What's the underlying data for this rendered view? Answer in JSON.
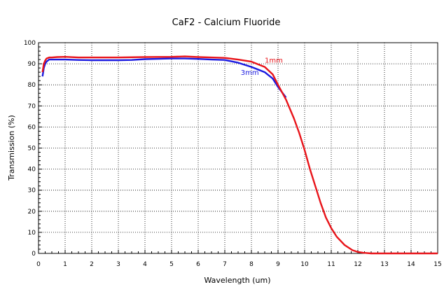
{
  "chart_data": {
    "type": "line",
    "title": "CaF2 - Calcium Fluoride",
    "xlabel": "Wavelength (um)",
    "ylabel": "Transmission (%)",
    "xlim": [
      0,
      15
    ],
    "ylim": [
      0,
      100
    ],
    "xticks": [
      0,
      1,
      2,
      3,
      4,
      5,
      6,
      7,
      8,
      9,
      10,
      11,
      12,
      13,
      14,
      15
    ],
    "yticks": [
      0,
      10,
      20,
      30,
      40,
      50,
      60,
      70,
      80,
      90,
      100
    ],
    "grid": true,
    "series": [
      {
        "name": "1mm",
        "color": "#e8141a",
        "x": [
          0.15,
          0.2,
          0.25,
          0.3,
          0.4,
          0.5,
          0.7,
          1.0,
          1.5,
          2.0,
          3.0,
          4.0,
          5.0,
          5.5,
          6.0,
          6.5,
          7.0,
          7.5,
          8.0,
          8.5,
          8.8,
          9.0,
          9.3,
          9.6,
          9.8,
          10.0,
          10.2,
          10.4,
          10.6,
          10.8,
          11.0,
          11.2,
          11.5,
          11.8,
          12.0,
          12.2,
          12.5,
          13.0,
          14.0,
          15.0
        ],
        "y": [
          86,
          90,
          91.5,
          92.5,
          93,
          93,
          93.2,
          93.3,
          93,
          93,
          93,
          93.2,
          93.3,
          93.5,
          93.2,
          93,
          92.8,
          92,
          91,
          88.5,
          85,
          80,
          73,
          64,
          57,
          49,
          40,
          32,
          24,
          17,
          12,
          8,
          4,
          1.5,
          0.7,
          0.3,
          0,
          0,
          0,
          0
        ]
      },
      {
        "name": "3mm",
        "color": "#1a1ae0",
        "x": [
          0.15,
          0.2,
          0.25,
          0.3,
          0.4,
          0.5,
          0.7,
          1.0,
          1.5,
          2.0,
          3.0,
          3.5,
          4.0,
          5.0,
          5.5,
          6.0,
          6.5,
          7.0,
          7.5,
          8.0,
          8.5,
          8.8,
          9.0,
          9.3
        ],
        "y": [
          84,
          88,
          90,
          91,
          92,
          92,
          92,
          92,
          91.8,
          91.7,
          91.7,
          91.8,
          92.2,
          92.5,
          92.5,
          92.3,
          92,
          91.8,
          90.5,
          88.5,
          86,
          83,
          79,
          74
        ]
      }
    ],
    "annotations": [
      {
        "text": "1mm",
        "x": 8.5,
        "y": 90.5,
        "color": "#e8141a"
      },
      {
        "text": "3mm",
        "x": 7.6,
        "y": 84.8,
        "color": "#1a1ae0"
      }
    ]
  }
}
